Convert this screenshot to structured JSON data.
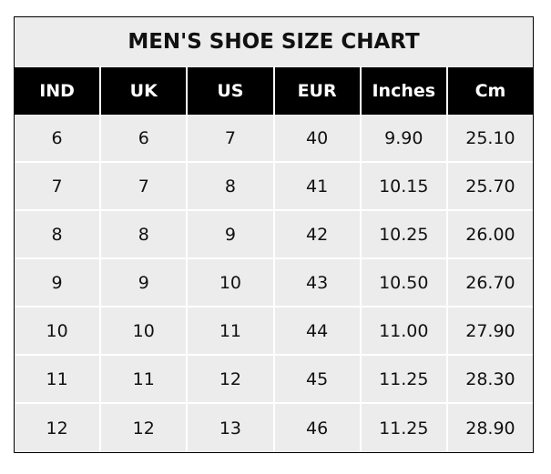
{
  "chart_data": {
    "type": "table",
    "title": "MEN'S SHOE SIZE CHART",
    "columns": [
      "IND",
      "UK",
      "US",
      "EUR",
      "Inches",
      "Cm"
    ],
    "rows": [
      [
        "6",
        "6",
        "7",
        "40",
        "9.90",
        "25.10"
      ],
      [
        "7",
        "7",
        "8",
        "41",
        "10.15",
        "25.70"
      ],
      [
        "8",
        "8",
        "9",
        "42",
        "10.25",
        "26.00"
      ],
      [
        "9",
        "9",
        "10",
        "43",
        "10.50",
        "26.70"
      ],
      [
        "10",
        "10",
        "11",
        "44",
        "11.00",
        "27.90"
      ],
      [
        "11",
        "11",
        "12",
        "45",
        "11.25",
        "28.30"
      ],
      [
        "12",
        "12",
        "13",
        "46",
        "11.25",
        "28.90"
      ]
    ],
    "colors": {
      "header_bg": "#000000",
      "header_text": "#ffffff",
      "cell_bg": "#ececec",
      "grid": "#ffffff"
    }
  }
}
